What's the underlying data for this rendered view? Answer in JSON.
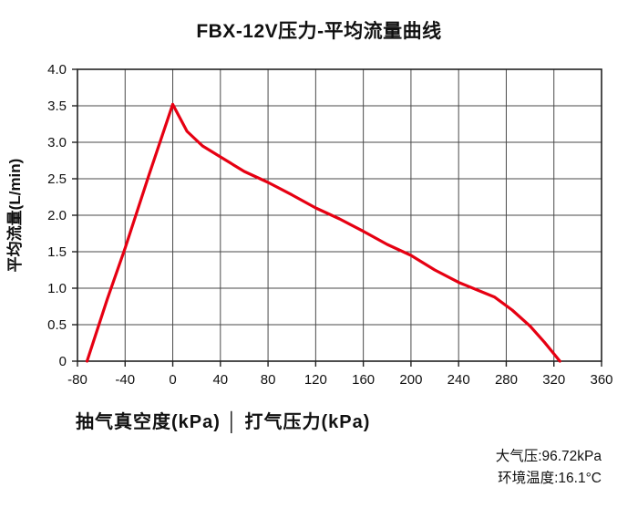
{
  "title": "FBX-12V压力-平均流量曲线",
  "chart_data": {
    "type": "line",
    "title": "FBX-12V压力-平均流量曲线",
    "xlabel": "抽气真空度(kPa) │ 打气压力(kPa)",
    "ylabel": "平均流量(L/min)",
    "xlim": [
      -80,
      360
    ],
    "ylim": [
      0,
      4.0
    ],
    "xtick_labels": [
      "-80",
      "-40",
      "0",
      "40",
      "80",
      "120",
      "160",
      "200",
      "240",
      "280",
      "320",
      "360"
    ],
    "ytick_labels": [
      "0",
      "0.5",
      "1.0",
      "1.5",
      "2.0",
      "2.5",
      "3.0",
      "3.5",
      "4.0"
    ],
    "grid": true,
    "legend": "none",
    "line_color": "#e60012",
    "series": [
      {
        "name": "平均流量",
        "points": [
          [
            -72,
            0
          ],
          [
            -55,
            0.85
          ],
          [
            -40,
            1.55
          ],
          [
            -20,
            2.55
          ],
          [
            0,
            3.52
          ],
          [
            12,
            3.15
          ],
          [
            25,
            2.95
          ],
          [
            40,
            2.8
          ],
          [
            60,
            2.6
          ],
          [
            80,
            2.45
          ],
          [
            100,
            2.28
          ],
          [
            120,
            2.1
          ],
          [
            140,
            1.95
          ],
          [
            160,
            1.78
          ],
          [
            180,
            1.6
          ],
          [
            200,
            1.45
          ],
          [
            220,
            1.25
          ],
          [
            240,
            1.08
          ],
          [
            255,
            0.98
          ],
          [
            270,
            0.88
          ],
          [
            285,
            0.7
          ],
          [
            300,
            0.48
          ],
          [
            312,
            0.26
          ],
          [
            325,
            0
          ]
        ]
      }
    ],
    "annotations": [
      "大气压:96.72kPa",
      "环境温度:16.1°C"
    ]
  },
  "footer": {
    "pressure_note": "大气压:96.72kPa",
    "temp_note": "环境温度:16.1°C"
  }
}
